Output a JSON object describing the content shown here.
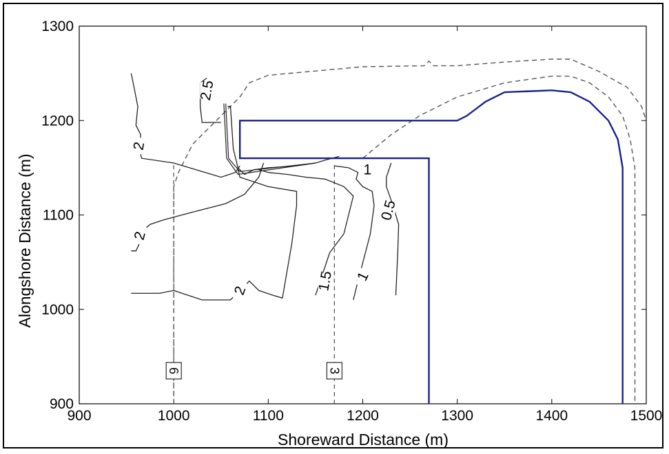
{
  "chart_data": {
    "type": "contour",
    "xlabel": "Shoreward Distance (m)",
    "ylabel": "Alongshore Distance (m)",
    "xlim": [
      900,
      1500
    ],
    "ylim": [
      900,
      1300
    ],
    "xticks": [
      900,
      1000,
      1100,
      1200,
      1300,
      1400,
      1500
    ],
    "yticks": [
      900,
      1000,
      1100,
      1200,
      1300
    ],
    "grid": false,
    "structure_outline": {
      "color": "#1a1f8c",
      "points": [
        [
          1270,
          900
        ],
        [
          1270,
          1160
        ],
        [
          1070,
          1160
        ],
        [
          1070,
          1200
        ],
        [
          1300,
          1200
        ],
        [
          1310,
          1205
        ],
        [
          1330,
          1220
        ],
        [
          1350,
          1230
        ],
        [
          1400,
          1232
        ],
        [
          1420,
          1230
        ],
        [
          1440,
          1220
        ],
        [
          1460,
          1200
        ],
        [
          1470,
          1180
        ],
        [
          1475,
          1150
        ],
        [
          1475,
          900
        ]
      ]
    },
    "dashed_outlines": [
      {
        "name": "",
        "points": [
          [
            1000,
            900
          ],
          [
            1000,
            1130
          ],
          [
            1005,
            1145
          ],
          [
            1020,
            1175
          ],
          [
            1045,
            1200
          ],
          [
            1070,
            1225
          ],
          [
            1080,
            1240
          ],
          [
            1100,
            1248
          ],
          [
            1200,
            1257
          ],
          [
            1265,
            1258
          ],
          [
            1270,
            1263
          ],
          [
            1275,
            1258
          ],
          [
            1300,
            1258
          ],
          [
            1350,
            1262
          ],
          [
            1400,
            1265
          ],
          [
            1420,
            1265
          ],
          [
            1450,
            1252
          ],
          [
            1480,
            1235
          ],
          [
            1495,
            1215
          ],
          [
            1500,
            1200
          ]
        ]
      },
      {
        "name": "",
        "points": [
          [
            1200,
            1160
          ],
          [
            1230,
            1185
          ],
          [
            1260,
            1205
          ],
          [
            1300,
            1225
          ],
          [
            1350,
            1240
          ],
          [
            1400,
            1247
          ],
          [
            1420,
            1247
          ],
          [
            1440,
            1240
          ],
          [
            1460,
            1225
          ],
          [
            1475,
            1205
          ],
          [
            1483,
            1180
          ],
          [
            1488,
            1150
          ],
          [
            1488,
            900
          ]
        ]
      }
    ],
    "contours": [
      {
        "level": "2.5",
        "points": [
          [
            1050,
            1198
          ],
          [
            1030,
            1198
          ],
          [
            1028,
            1215
          ],
          [
            1028,
            1240
          ],
          [
            1035,
            1245
          ]
        ]
      },
      {
        "level": "2",
        "points": [
          [
            955,
            1250
          ],
          [
            958,
            1235
          ],
          [
            962,
            1215
          ],
          [
            960,
            1195
          ],
          [
            965,
            1185
          ],
          [
            964,
            1168
          ],
          [
            966,
            1160
          ],
          [
            1000,
            1155
          ],
          [
            1050,
            1140
          ],
          [
            1065,
            1145
          ],
          [
            1070,
            1152
          ]
        ]
      },
      {
        "level": "2",
        "points": [
          [
            955,
            1062
          ],
          [
            960,
            1062
          ],
          [
            963,
            1068
          ],
          [
            965,
            1076
          ],
          [
            968,
            1084
          ],
          [
            975,
            1090
          ],
          [
            990,
            1095
          ],
          [
            1020,
            1103
          ],
          [
            1055,
            1112
          ],
          [
            1075,
            1122
          ],
          [
            1090,
            1140
          ],
          [
            1095,
            1155
          ]
        ]
      },
      {
        "level": "2",
        "points": [
          [
            955,
            1017
          ],
          [
            985,
            1017
          ],
          [
            1000,
            1020
          ],
          [
            1030,
            1010
          ],
          [
            1060,
            1010
          ],
          [
            1070,
            1020
          ],
          [
            1080,
            1030
          ],
          [
            1090,
            1020
          ],
          [
            1105,
            1015
          ],
          [
            1115,
            1012
          ],
          [
            1125,
            1070
          ],
          [
            1130,
            1110
          ],
          [
            1130,
            1125
          ],
          [
            1100,
            1130
          ],
          [
            1070,
            1140
          ],
          [
            1068,
            1148
          ]
        ]
      },
      {
        "level": "1.5",
        "points": [
          [
            1150,
            1015
          ],
          [
            1155,
            1030
          ],
          [
            1165,
            1060
          ],
          [
            1180,
            1080
          ],
          [
            1190,
            1120
          ],
          [
            1180,
            1130
          ],
          [
            1160,
            1138
          ],
          [
            1140,
            1140
          ],
          [
            1120,
            1143
          ],
          [
            1100,
            1145
          ],
          [
            1090,
            1148
          ]
        ]
      },
      {
        "level": "1",
        "points": [
          [
            1190,
            1010
          ],
          [
            1195,
            1030
          ],
          [
            1208,
            1080
          ],
          [
            1212,
            1110
          ],
          [
            1210,
            1125
          ],
          [
            1200,
            1130
          ],
          [
            1193,
            1138
          ],
          [
            1195,
            1145
          ],
          [
            1185,
            1150
          ],
          [
            1170,
            1152
          ]
        ]
      },
      {
        "level": "0.5",
        "points": [
          [
            1235,
            1015
          ],
          [
            1237,
            1060
          ],
          [
            1238,
            1090
          ],
          [
            1232,
            1110
          ],
          [
            1225,
            1130
          ],
          [
            1225,
            1140
          ],
          [
            1230,
            1155
          ]
        ]
      },
      {
        "level": "",
        "points": [
          [
            1057,
            1215
          ],
          [
            1060,
            1215
          ],
          [
            1063,
            1170
          ],
          [
            1068,
            1150
          ],
          [
            1075,
            1143
          ],
          [
            1085,
            1148
          ],
          [
            1100,
            1150
          ],
          [
            1130,
            1152
          ],
          [
            1150,
            1155
          ],
          [
            1160,
            1158
          ],
          [
            1175,
            1162
          ]
        ]
      }
    ],
    "contour_label_text": [
      "2.5",
      "2",
      "2",
      "2",
      "1.5",
      "1",
      "0.5",
      "1"
    ],
    "transects": [
      {
        "label": "6",
        "x": 1000
      },
      {
        "label": "3",
        "x": 1170
      }
    ]
  }
}
